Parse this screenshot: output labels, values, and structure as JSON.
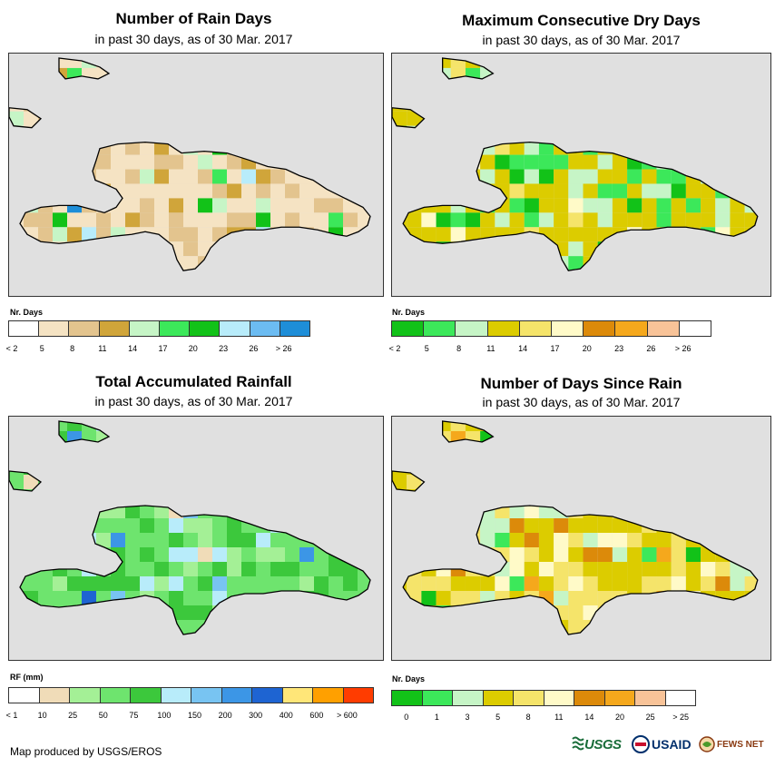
{
  "footer_text": "Map produced by USGS/EROS",
  "logos": {
    "usgs": "USGS",
    "usaid": "USAID",
    "fews": "FEWS NET"
  },
  "panels": [
    {
      "id": "rain-days",
      "title": "Number of Rain Days",
      "subtitle": "in past 30 days, as of 30 Mar. 2017",
      "legend_title": "Nr. Days",
      "legend_colors": [
        "#ffffff",
        "#f5e3c3",
        "#e3c48e",
        "#d0a53a",
        "#c6f5c6",
        "#3ce85a",
        "#12c218",
        "#b8ecfa",
        "#6cbcf2",
        "#1e8ed8"
      ],
      "legend_labels": [
        "< 2",
        "5",
        "8",
        "11",
        "14",
        "17",
        "20",
        "23",
        "26",
        "> 26"
      ],
      "label_mode": "left",
      "map_palette": [
        "#f5e3c3",
        "#e3c48e",
        "#d0a53a",
        "#c6f5c6",
        "#3ce85a",
        "#12c218",
        "#b8ecfa",
        "#6cbcf2",
        "#1e8ed8",
        "#ffffff"
      ],
      "map_weights": [
        55,
        22,
        9,
        6,
        3,
        2,
        1,
        1,
        1,
        0
      ]
    },
    {
      "id": "dry-days",
      "title": "Maximum Consecutive Dry Days",
      "subtitle": "in past 30 days, as of 30 Mar. 2017",
      "legend_title": "Nr. Days",
      "legend_colors": [
        "#12c218",
        "#3ce85a",
        "#c6f5c6",
        "#dccc00",
        "#f5e46a",
        "#fffac8",
        "#dc8a0a",
        "#f5a81c",
        "#f8c398",
        "#ffffff"
      ],
      "legend_labels": [
        "< 2",
        "5",
        "8",
        "11",
        "14",
        "17",
        "20",
        "23",
        "26",
        "> 26"
      ],
      "label_mode": "left",
      "map_palette": [
        "#dccc00",
        "#c6f5c6",
        "#3ce85a",
        "#12c218",
        "#f5e46a",
        "#fffac8"
      ],
      "map_weights": [
        55,
        16,
        14,
        5,
        6,
        4
      ]
    },
    {
      "id": "rainfall",
      "title": "Total Accumulated Rainfall",
      "subtitle": "in past 30 days, as of 30 Mar. 2017",
      "legend_title": "RF (mm)",
      "legend_colors": [
        "#ffffff",
        "#f0dcb8",
        "#a4f096",
        "#6ee46e",
        "#3cc83c",
        "#b8ecfa",
        "#78c4f2",
        "#3c96e6",
        "#1e64d2",
        "#ffe678",
        "#ffa000",
        "#ff3c00"
      ],
      "legend_labels": [
        "< 1",
        "10",
        "25",
        "50",
        "75",
        "100",
        "150",
        "200",
        "300",
        "400",
        "600",
        "> 600"
      ],
      "label_mode": "left",
      "map_palette": [
        "#6ee46e",
        "#3cc83c",
        "#a4f096",
        "#b8ecfa",
        "#78c4f2",
        "#3c96e6",
        "#1e64d2",
        "#f0dcb8"
      ],
      "map_weights": [
        40,
        30,
        14,
        7,
        4,
        2,
        1,
        2
      ]
    },
    {
      "id": "since-rain",
      "title": "Number of Days Since Rain",
      "subtitle": "in past 30 days, as of 30 Mar. 2017",
      "legend_title": "Nr. Days",
      "legend_colors": [
        "#12c218",
        "#3ce85a",
        "#c6f5c6",
        "#dccc00",
        "#f5e46a",
        "#fffac8",
        "#dc8a0a",
        "#f5a81c",
        "#f8c398",
        "#ffffff"
      ],
      "legend_labels": [
        "0",
        "1",
        "3",
        "5",
        "8",
        "11",
        "14",
        "20",
        "25",
        "> 25"
      ],
      "label_mode": "center",
      "map_palette": [
        "#dccc00",
        "#f5e46a",
        "#fffac8",
        "#c6f5c6",
        "#3ce85a",
        "#12c218",
        "#dc8a0a",
        "#f5a81c"
      ],
      "map_weights": [
        42,
        28,
        10,
        7,
        3,
        3,
        4,
        3
      ]
    }
  ]
}
